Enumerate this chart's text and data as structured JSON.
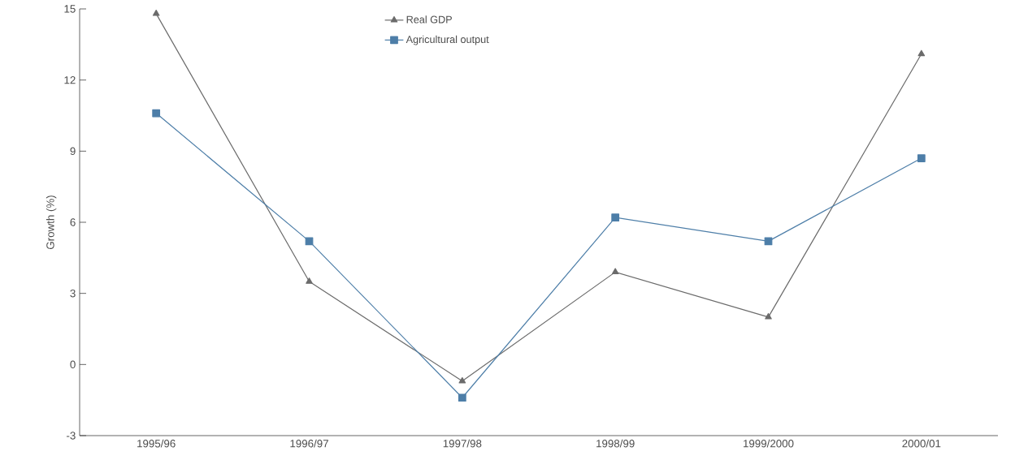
{
  "chart_data": {
    "type": "line",
    "ylabel": "Growth (%)",
    "categories": [
      "1995/96",
      "1996/97",
      "1997/98",
      "1998/99",
      "1999/2000",
      "2000/01"
    ],
    "series": [
      {
        "name": "Real GDP",
        "color": "#6b6b6b",
        "marker": "triangle",
        "values": [
          14.8,
          3.5,
          -0.7,
          3.9,
          2.0,
          13.1
        ]
      },
      {
        "name": "Agricultural output",
        "color": "#4d7ea8",
        "marker": "square",
        "values": [
          10.6,
          5.2,
          -1.4,
          6.2,
          5.2,
          8.7
        ]
      }
    ],
    "ylim": [
      -3,
      15
    ],
    "yticks": [
      -3,
      0,
      3,
      6,
      9,
      12,
      15
    ],
    "grid": false,
    "legend": "top",
    "line_style": "solid"
  }
}
